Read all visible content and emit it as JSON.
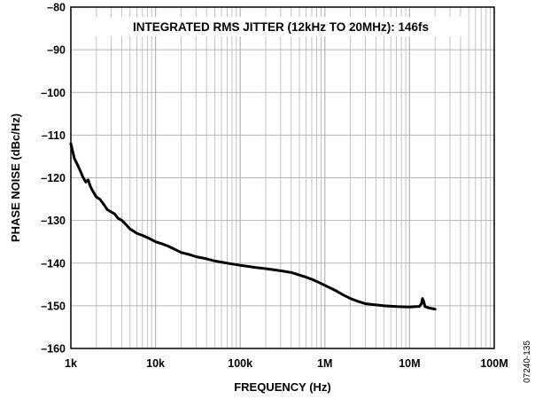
{
  "chart_data": {
    "type": "line",
    "xlabel": "FREQUENCY (Hz)",
    "ylabel": "PHASE NOISE (dBc/Hz)",
    "xscale": "log",
    "xlim": [
      1000,
      100000000
    ],
    "ylim": [
      -160,
      -80
    ],
    "x_ticks": [
      {
        "value": 1000,
        "label": "1k"
      },
      {
        "value": 10000,
        "label": "10k"
      },
      {
        "value": 100000,
        "label": "100k"
      },
      {
        "value": 1000000,
        "label": "1M"
      },
      {
        "value": 10000000,
        "label": "10M"
      },
      {
        "value": 100000000,
        "label": "100M"
      }
    ],
    "y_ticks": [
      {
        "value": -80,
        "label": "–80"
      },
      {
        "value": -90,
        "label": "–90"
      },
      {
        "value": -100,
        "label": "–100"
      },
      {
        "value": -110,
        "label": "–110"
      },
      {
        "value": -120,
        "label": "–120"
      },
      {
        "value": -130,
        "label": "–130"
      },
      {
        "value": -140,
        "label": "–140"
      },
      {
        "value": -150,
        "label": "–150"
      },
      {
        "value": -160,
        "label": "–160"
      }
    ],
    "grid": true,
    "annotation": "INTEGRATED RMS JITTER (12kHz TO 20MHz): 146fs",
    "figure_id": "07240-135",
    "series": [
      {
        "color": "#000000",
        "points": [
          [
            1000,
            -112
          ],
          [
            1100,
            -115.5
          ],
          [
            1200,
            -117
          ],
          [
            1300,
            -118.5
          ],
          [
            1400,
            -120
          ],
          [
            1500,
            -121
          ],
          [
            1600,
            -120.5
          ],
          [
            1700,
            -122
          ],
          [
            1800,
            -123
          ],
          [
            2000,
            -124.5
          ],
          [
            2200,
            -125
          ],
          [
            2400,
            -126
          ],
          [
            2500,
            -126.5
          ],
          [
            2700,
            -127.5
          ],
          [
            3000,
            -128
          ],
          [
            3300,
            -128.5
          ],
          [
            3600,
            -129.5
          ],
          [
            4000,
            -130
          ],
          [
            4500,
            -131
          ],
          [
            5000,
            -132
          ],
          [
            5500,
            -132.5
          ],
          [
            6000,
            -133
          ],
          [
            7000,
            -133.5
          ],
          [
            8000,
            -134
          ],
          [
            9000,
            -134.5
          ],
          [
            10000,
            -135
          ],
          [
            12000,
            -135.5
          ],
          [
            14000,
            -136
          ],
          [
            17000,
            -136.8
          ],
          [
            20000,
            -137.5
          ],
          [
            25000,
            -138
          ],
          [
            30000,
            -138.5
          ],
          [
            40000,
            -139
          ],
          [
            50000,
            -139.5
          ],
          [
            70000,
            -140
          ],
          [
            100000,
            -140.5
          ],
          [
            150000,
            -141
          ],
          [
            200000,
            -141.3
          ],
          [
            300000,
            -141.8
          ],
          [
            400000,
            -142.2
          ],
          [
            500000,
            -142.8
          ],
          [
            600000,
            -143.3
          ],
          [
            700000,
            -143.8
          ],
          [
            800000,
            -144.3
          ],
          [
            1000000,
            -145.2
          ],
          [
            1300000,
            -146.3
          ],
          [
            1600000,
            -147.3
          ],
          [
            2000000,
            -148.3
          ],
          [
            2500000,
            -149
          ],
          [
            3000000,
            -149.5
          ],
          [
            4000000,
            -149.8
          ],
          [
            5000000,
            -150
          ],
          [
            7000000,
            -150.2
          ],
          [
            10000000,
            -150.3
          ],
          [
            12000000,
            -150.2
          ],
          [
            13000000,
            -150.2
          ],
          [
            13800000,
            -149.5
          ],
          [
            14200000,
            -148.3
          ],
          [
            14600000,
            -148.8
          ],
          [
            15200000,
            -150.2
          ],
          [
            17000000,
            -150.5
          ],
          [
            20000000,
            -150.8
          ]
        ]
      }
    ]
  }
}
